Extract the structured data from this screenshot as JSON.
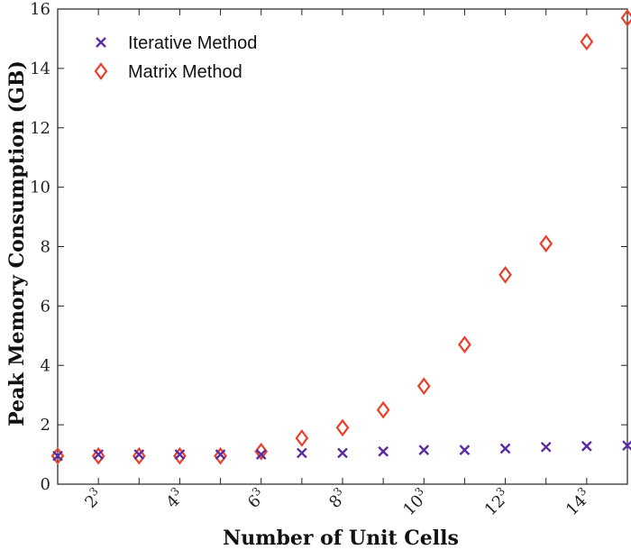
{
  "chart_data": {
    "type": "scatter",
    "xlabel": "Number of Unit Cells",
    "ylabel": "Peak Memory Consumption (GB)",
    "xlim": [
      1,
      15
    ],
    "ylim": [
      0,
      16
    ],
    "x_ticks": [
      {
        "base": "2",
        "exp": "3"
      },
      {
        "base": "4",
        "exp": "3"
      },
      {
        "base": "6",
        "exp": "3"
      },
      {
        "base": "8",
        "exp": "3"
      },
      {
        "base": "10",
        "exp": "3"
      },
      {
        "base": "12",
        "exp": "3"
      },
      {
        "base": "14",
        "exp": "3"
      }
    ],
    "y_ticks": [
      "0",
      "2",
      "4",
      "6",
      "8",
      "10",
      "12",
      "14",
      "16"
    ],
    "legend_position": "top-left",
    "x": [
      "1³",
      "2³",
      "3³",
      "4³",
      "5³",
      "6³",
      "7³",
      "8³",
      "9³",
      "10³",
      "11³",
      "12³",
      "13³",
      "14³",
      "15³"
    ],
    "series": [
      {
        "name": "Iterative Method",
        "marker": "x",
        "color": "#5a2ca0",
        "values": [
          0.95,
          1.0,
          1.0,
          1.0,
          1.0,
          1.0,
          1.05,
          1.05,
          1.1,
          1.15,
          1.15,
          1.2,
          1.25,
          1.28,
          1.3
        ]
      },
      {
        "name": "Matrix Method",
        "marker": "diamond",
        "color": "#e8402a",
        "values": [
          0.95,
          0.95,
          0.95,
          0.95,
          0.95,
          1.1,
          1.55,
          1.9,
          2.5,
          3.3,
          4.7,
          7.05,
          8.1,
          14.9,
          15.7
        ]
      }
    ]
  }
}
